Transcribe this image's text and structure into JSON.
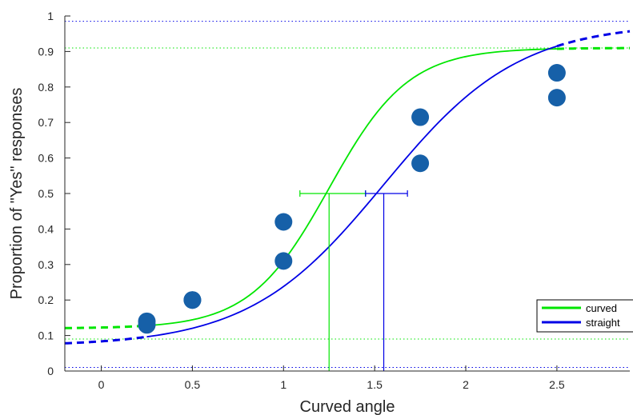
{
  "chart_data": {
    "type": "scatter",
    "title": "",
    "xlabel": "Curved angle",
    "ylabel": "Proportion of \"Yes\" responses",
    "xlim": [
      -0.2,
      2.9
    ],
    "ylim": [
      0,
      1
    ],
    "x_ticks": [
      0,
      0.5,
      1,
      1.5,
      2,
      2.5
    ],
    "x_tick_labels": [
      "0",
      "0.5",
      "1",
      "1.5",
      "2",
      "2.5"
    ],
    "y_ticks": [
      0,
      0.1,
      0.2,
      0.3,
      0.4,
      0.5,
      0.6,
      0.7,
      0.8,
      0.9,
      1
    ],
    "y_tick_labels": [
      "0",
      "0.1",
      "0.2",
      "0.3",
      "0.4",
      "0.5",
      "0.6",
      "0.7",
      "0.8",
      "0.9",
      "1"
    ],
    "grid": false,
    "legend_position": "bottom-right",
    "marker_color": "#1660a8",
    "series": [
      {
        "name": "curved",
        "color": "#00e600",
        "fit": {
          "guess": 0.12,
          "lapse": 0.09,
          "threshold": 1.25,
          "slope": 4.6
        },
        "fit_data_range": [
          0.25,
          2.5
        ],
        "threshold_x": 1.25,
        "threshold_ci": [
          1.09,
          1.45
        ],
        "asymptote_levels": [
          0.09,
          0.91
        ],
        "points": [
          {
            "x": 0.25,
            "y": 0.14
          },
          {
            "x": 0.5,
            "y": 0.2
          },
          {
            "x": 1.0,
            "y": 0.42
          },
          {
            "x": 1.75,
            "y": 0.715
          },
          {
            "x": 2.5,
            "y": 0.84
          }
        ]
      },
      {
        "name": "straight",
        "color": "#0000e6",
        "fit": {
          "guess": 0.07,
          "lapse": 0.02,
          "threshold": 1.55,
          "slope": 2.7
        },
        "fit_data_range": [
          0.25,
          2.5
        ],
        "threshold_x": 1.55,
        "threshold_ci": [
          1.45,
          1.68
        ],
        "asymptote_levels": [
          0.01,
          0.985
        ],
        "points": [
          {
            "x": 0.25,
            "y": 0.13
          },
          {
            "x": 0.5,
            "y": 0.2
          },
          {
            "x": 1.0,
            "y": 0.31
          },
          {
            "x": 1.75,
            "y": 0.585
          },
          {
            "x": 2.5,
            "y": 0.77
          }
        ]
      }
    ]
  }
}
